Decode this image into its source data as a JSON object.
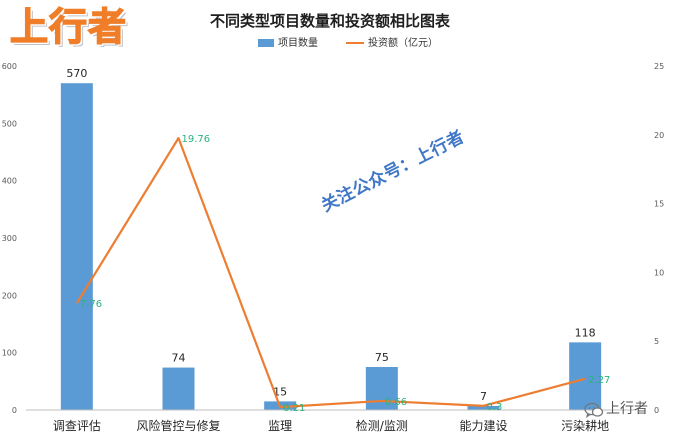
{
  "logo_text": "上行者",
  "watermark": "关注公众号：上行者",
  "badge": {
    "icon": "wechat-icon",
    "text": "上行者"
  },
  "chart_data": {
    "type": "bar",
    "title": "不同类型项目数量和投资额相比图表",
    "categories": [
      "调查评估",
      "风险管控与修复",
      "监理",
      "检测/监测",
      "能力建设",
      "污染耕地"
    ],
    "series": [
      {
        "name": "项目数量",
        "type": "bar",
        "axis": "left",
        "color": "#5b9bd5",
        "values": [
          570,
          74,
          15,
          75,
          7,
          118
        ]
      },
      {
        "name": "投资额（亿元）",
        "type": "line",
        "axis": "right",
        "color": "#ed7d31",
        "values": [
          7.76,
          19.76,
          0.21,
          0.66,
          0.3,
          2.27
        ]
      }
    ],
    "y_left": {
      "range": [
        0,
        600
      ],
      "ticks": [
        0,
        100,
        200,
        300,
        400,
        500,
        600
      ]
    },
    "y_right": {
      "range": [
        0,
        25
      ],
      "ticks": [
        0,
        5,
        10,
        15,
        20,
        25
      ]
    },
    "line_label_color": "#2ab37a",
    "grid": false,
    "legend": "top-center"
  }
}
